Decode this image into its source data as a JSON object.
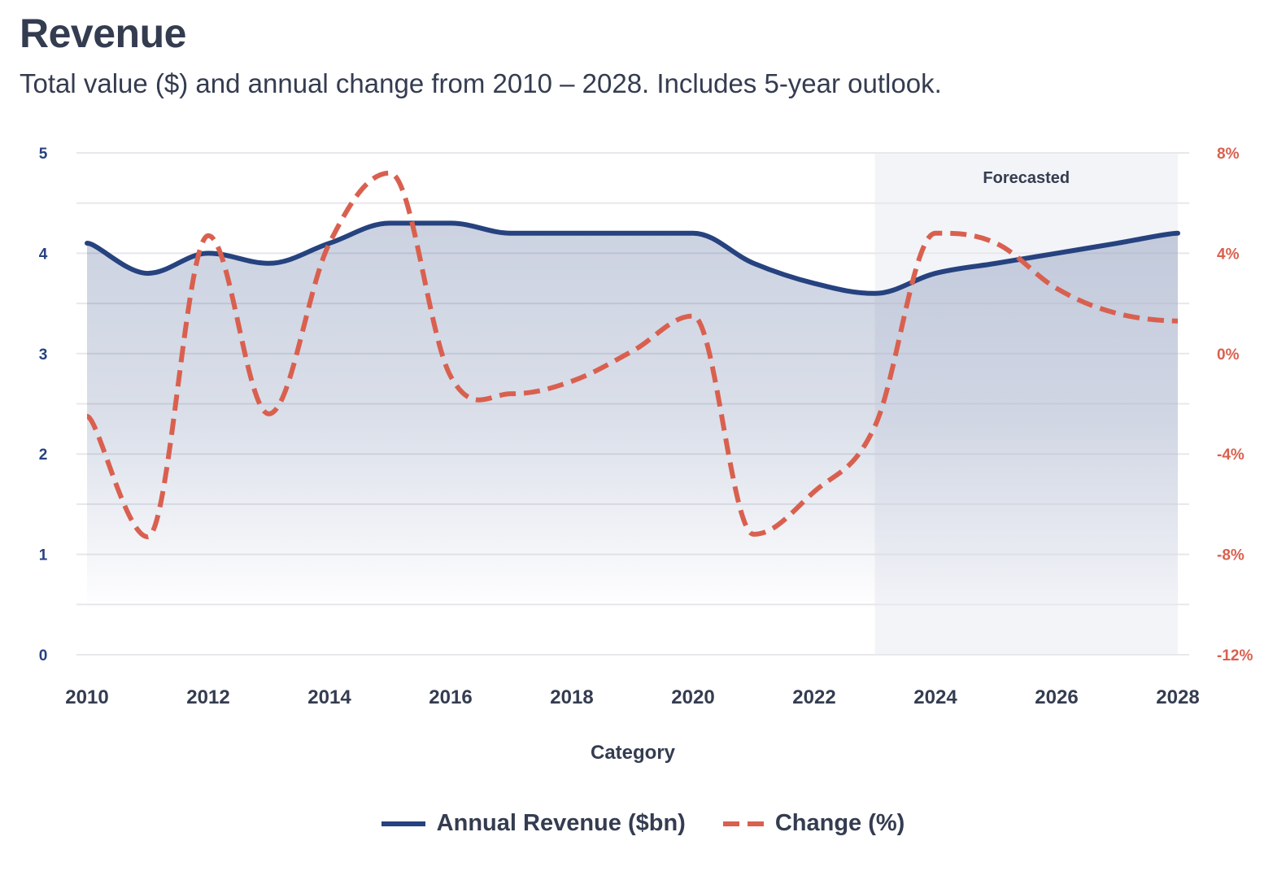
{
  "header": {
    "title": "Revenue",
    "subtitle": "Total value ($) and annual change from 2010 – 2028. Includes 5-year outlook."
  },
  "colors": {
    "revenue": "#26427f",
    "change": "#d9604f",
    "forecast_band": "#f3f4f8",
    "grid": "#e8e8ec",
    "text": "#343c50"
  },
  "chart_data": {
    "type": "line",
    "title": "Revenue",
    "subtitle": "Total value ($) and annual change from 2010 – 2028. Includes 5-year outlook.",
    "xlabel": "Category",
    "ylabel": "",
    "y2label": "",
    "x": [
      2010,
      2011,
      2012,
      2013,
      2014,
      2015,
      2016,
      2017,
      2018,
      2019,
      2020,
      2021,
      2022,
      2023,
      2024,
      2025,
      2026,
      2027,
      2028
    ],
    "x_ticks": [
      "2010",
      "2012",
      "2014",
      "2016",
      "2018",
      "2020",
      "2022",
      "2024",
      "2026",
      "2028"
    ],
    "ylim": [
      0,
      5
    ],
    "y_ticks": [
      "0",
      "1",
      "2",
      "3",
      "4",
      "5"
    ],
    "y2lim": [
      -12,
      8
    ],
    "y2_ticks": [
      "-12%",
      "-8%",
      "-4%",
      "0%",
      "4%",
      "8%"
    ],
    "grid": true,
    "series": [
      {
        "name": "Annual Revenue ($bn)",
        "axis": "left",
        "style": "solid-area",
        "values": [
          4.1,
          3.8,
          4.0,
          3.9,
          4.1,
          4.3,
          4.3,
          4.2,
          4.2,
          4.2,
          4.2,
          3.9,
          3.7,
          3.6,
          3.8,
          3.9,
          4.0,
          4.1,
          4.2
        ]
      },
      {
        "name": "Change (%)",
        "axis": "right",
        "style": "dashed",
        "values": [
          -2.5,
          -7.3,
          4.7,
          -2.4,
          4.4,
          7.2,
          -0.9,
          -1.6,
          -1.1,
          0.1,
          1.5,
          -7.2,
          -5.5,
          -2.9,
          4.8,
          4.4,
          2.6,
          1.6,
          1.3
        ]
      }
    ],
    "annotations": [
      {
        "type": "band",
        "x_start": 2023,
        "x_end": 2028,
        "label": "Forecasted"
      }
    ],
    "legend": {
      "position": "bottom",
      "entries": [
        "Annual Revenue ($bn)",
        "Change (%)"
      ]
    }
  }
}
